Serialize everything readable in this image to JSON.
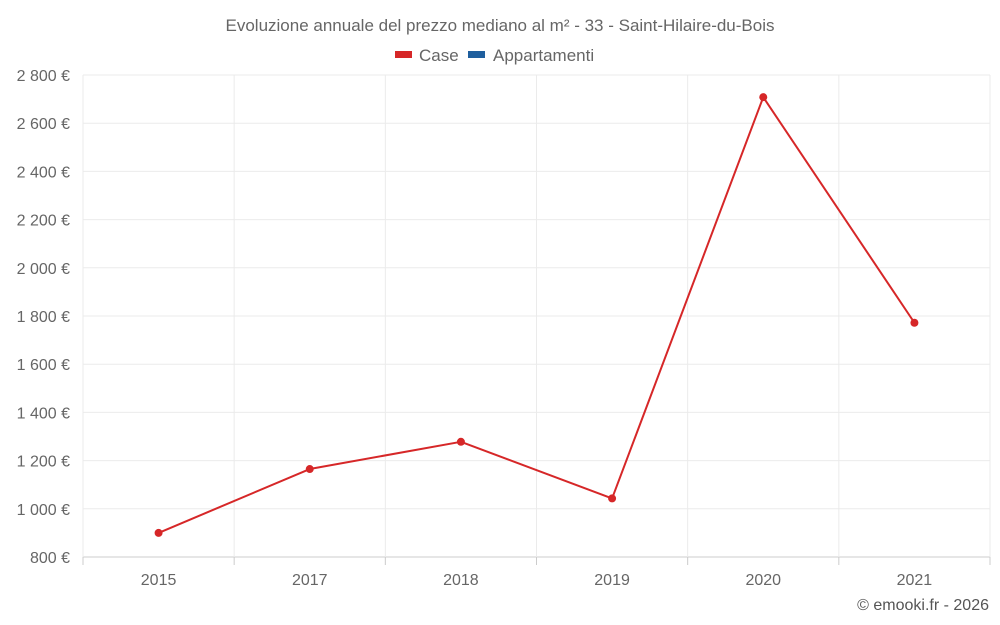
{
  "chart_data": {
    "type": "line",
    "title": "Evoluzione annuale del prezzo mediano al m² - 33 - Saint-Hilaire-du-Bois",
    "categories": [
      "2015",
      "2017",
      "2018",
      "2019",
      "2020",
      "2021"
    ],
    "series": [
      {
        "name": "Case",
        "color": "#d62728",
        "values": [
          900,
          1165,
          1278,
          1043,
          2708,
          1772
        ]
      },
      {
        "name": "Appartamenti",
        "color": "#1f5f9e",
        "values": [
          null,
          null,
          null,
          null,
          null,
          null
        ]
      }
    ],
    "ylim": [
      800,
      2800
    ],
    "yticks": [
      800,
      1000,
      1200,
      1400,
      1600,
      1800,
      2000,
      2200,
      2400,
      2600,
      2800
    ],
    "ytick_labels": [
      "800 €",
      "1 000 €",
      "1 200 €",
      "1 400 €",
      "1 600 €",
      "1 800 €",
      "2 000 €",
      "2 200 €",
      "2 400 €",
      "2 600 €",
      "2 800 €"
    ],
    "grid": true,
    "legend_position": "top-center"
  },
  "credit": "© emooki.fr - 2026"
}
